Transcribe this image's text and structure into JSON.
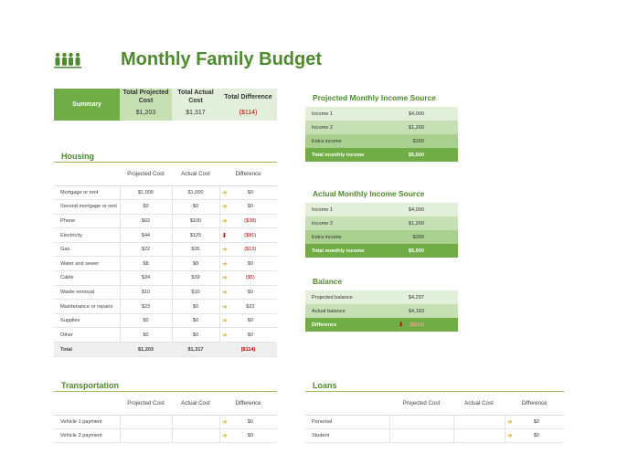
{
  "title": "Monthly Family Budget",
  "logo_icon": "family-icon",
  "summary": {
    "label": "Summary",
    "h_proj": "Total Projected Cost",
    "h_act": "Total Actual Cost",
    "h_diff": "Total Difference",
    "proj": "$1,203",
    "act": "$1,317",
    "diff": "($114)"
  },
  "housing": {
    "title": "Housing",
    "col_proj": "Projected Cost",
    "col_act": "Actual Cost",
    "col_diff": "Difference",
    "rows": [
      {
        "name": "Mortgage or rent",
        "proj": "$1,000",
        "act": "$1,000",
        "diff": "$0",
        "dir": "right"
      },
      {
        "name": "Second mortgage or rent",
        "proj": "$0",
        "act": "$0",
        "diff": "$0",
        "dir": "right"
      },
      {
        "name": "Phone",
        "proj": "$62",
        "act": "$100",
        "diff": "($38)",
        "dir": "right"
      },
      {
        "name": "Electricity",
        "proj": "$44",
        "act": "$125",
        "diff": "($81)",
        "dir": "down"
      },
      {
        "name": "Gas",
        "proj": "$22",
        "act": "$35",
        "diff": "($13)",
        "dir": "right"
      },
      {
        "name": "Water and sewer",
        "proj": "$8",
        "act": "$8",
        "diff": "$0",
        "dir": "right"
      },
      {
        "name": "Cable",
        "proj": "$34",
        "act": "$39",
        "diff": "($5)",
        "dir": "right"
      },
      {
        "name": "Waste removal",
        "proj": "$10",
        "act": "$10",
        "diff": "$0",
        "dir": "right"
      },
      {
        "name": "Maintenance or repairs",
        "proj": "$23",
        "act": "$0",
        "diff": "$23",
        "dir": "right"
      },
      {
        "name": "Supplies",
        "proj": "$0",
        "act": "$0",
        "diff": "$0",
        "dir": "right"
      },
      {
        "name": "Other",
        "proj": "$0",
        "act": "$0",
        "diff": "$0",
        "dir": "right"
      }
    ],
    "total": {
      "name": "Total",
      "proj": "$1,203",
      "act": "$1,317",
      "diff": "($114)"
    }
  },
  "projected_income": {
    "title": "Projected Monthly Income Source",
    "rows": [
      {
        "name": "Income 1",
        "value": "$4,000"
      },
      {
        "name": "Income 2",
        "value": "$1,200"
      },
      {
        "name": "Extra income",
        "value": "$300"
      }
    ],
    "total": {
      "name": "Total monthly income",
      "value": "$5,500"
    }
  },
  "actual_income": {
    "title": "Actual Monthly Income Source",
    "rows": [
      {
        "name": "Income 1",
        "value": "$4,000"
      },
      {
        "name": "Income 2",
        "value": "$1,200"
      },
      {
        "name": "Extra income",
        "value": "$300"
      }
    ],
    "total": {
      "name": "Total monthly income",
      "value": "$5,500"
    }
  },
  "balance": {
    "title": "Balance",
    "projected_label": "Projected balance",
    "projected_value": "$4,297",
    "actual_label": "Actual balance",
    "actual_value": "$4,183",
    "diff_label": "Difference",
    "diff_value": "($114)"
  },
  "transportation": {
    "title": "Transportation",
    "col_proj": "Projected Cost",
    "col_act": "Actual Cost",
    "col_diff": "Difference",
    "rows": [
      {
        "name": "Vehicle 1 payment",
        "proj": "",
        "act": "",
        "diff": "$0"
      },
      {
        "name": "Vehicle 2 payment",
        "proj": "",
        "act": "",
        "diff": "$0"
      }
    ]
  },
  "loans": {
    "title": "Loans",
    "col_proj": "Projected Cost",
    "col_act": "Actual Cost",
    "col_diff": "Difference",
    "rows": [
      {
        "name": "Personal",
        "proj": "",
        "act": "",
        "diff": "$0"
      },
      {
        "name": "Student",
        "proj": "",
        "act": "",
        "diff": "$0"
      }
    ]
  },
  "colors": {
    "accent": "#70ad47",
    "title": "#4e8b2e",
    "negative": "#c00000",
    "arrow": "#e6a12a"
  }
}
